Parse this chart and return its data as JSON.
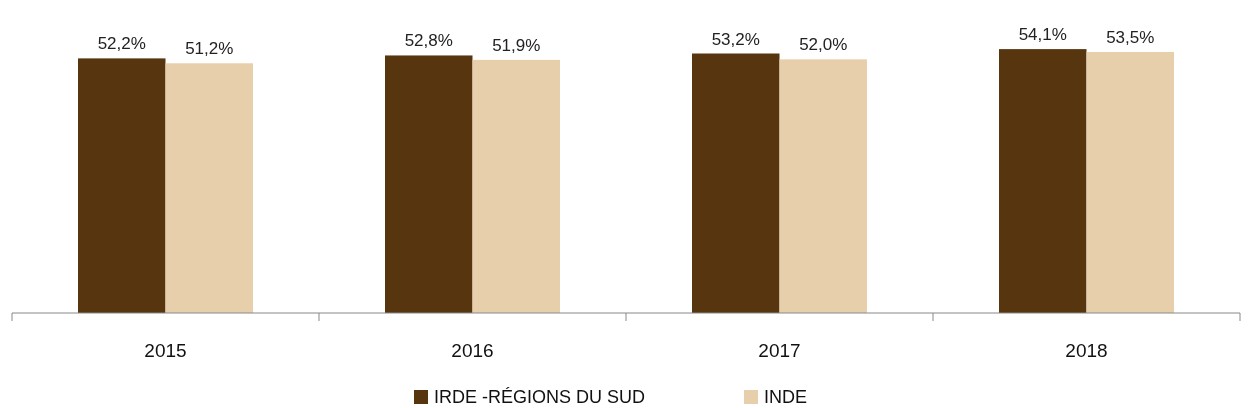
{
  "chart_data": {
    "type": "bar",
    "categories": [
      "2015",
      "2016",
      "2017",
      "2018"
    ],
    "series": [
      {
        "name": "IRDE -RÉGIONS DU SUD",
        "color": "#56350f",
        "values": [
          52.2,
          52.8,
          53.2,
          54.1
        ],
        "value_labels": [
          "52,2%",
          "52,8%",
          "53,2%",
          "54,1%"
        ]
      },
      {
        "name": "INDE",
        "color": "#e8cfab",
        "values": [
          51.2,
          51.9,
          52.0,
          53.5
        ],
        "value_labels": [
          "51,2%",
          "51,9%",
          "52,0%",
          "53,5%"
        ]
      }
    ],
    "tick_labels": "x",
    "legend": "bottom"
  }
}
